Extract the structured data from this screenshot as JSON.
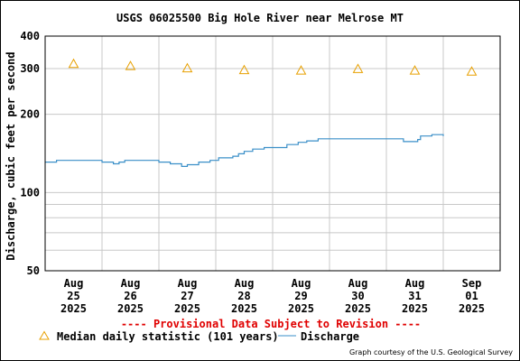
{
  "chart_data": {
    "type": "line",
    "title": "USGS 06025500 Big Hole River near Melrose MT",
    "ylabel": "Discharge, cubic feet per second",
    "y_scale": "log",
    "ylim": [
      50,
      400
    ],
    "y_ticks": [
      50,
      100,
      200,
      300,
      400
    ],
    "x_ticks": [
      {
        "day": 25,
        "lines": [
          "Aug",
          "25",
          "2025"
        ]
      },
      {
        "day": 26,
        "lines": [
          "Aug",
          "26",
          "2025"
        ]
      },
      {
        "day": 27,
        "lines": [
          "Aug",
          "27",
          "2025"
        ]
      },
      {
        "day": 28,
        "lines": [
          "Aug",
          "28",
          "2025"
        ]
      },
      {
        "day": 29,
        "lines": [
          "Aug",
          "29",
          "2025"
        ]
      },
      {
        "day": 30,
        "lines": [
          "Aug",
          "30",
          "2025"
        ]
      },
      {
        "day": 31,
        "lines": [
          "Aug",
          "31",
          "2025"
        ]
      },
      {
        "day": 32,
        "lines": [
          "Sep",
          "01",
          "2025"
        ]
      }
    ],
    "grid": true,
    "provisional_note": "---- Provisional Data Subject to Revision ----",
    "credit": "Graph courtesy of the U.S. Geological Survey",
    "series": [
      {
        "name": "Median daily statistic (101 years)",
        "kind": "marker-triangle",
        "color": "#e8a000",
        "x": [
          25,
          26,
          27,
          28,
          29,
          30,
          31,
          32
        ],
        "y": [
          313,
          307,
          301,
          296,
          295,
          299,
          295,
          292
        ]
      },
      {
        "name": "Discharge",
        "kind": "line",
        "color": "#3a8fc8",
        "x": [
          24.5,
          24.7,
          25.3,
          25.5,
          25.7,
          25.8,
          25.9,
          26.2,
          26.5,
          26.7,
          26.9,
          27.0,
          27.2,
          27.4,
          27.55,
          27.8,
          27.9,
          28.0,
          28.15,
          28.35,
          28.5,
          28.75,
          28.95,
          29.1,
          29.3,
          29.8,
          30.2,
          30.5,
          30.8,
          30.9,
          31.0,
          31.05,
          31.1,
          31.3,
          31.5
        ],
        "y": [
          131,
          133,
          133,
          131,
          129,
          131,
          133,
          133,
          131,
          129,
          126,
          128,
          131,
          133,
          136,
          138,
          141,
          144,
          147,
          149,
          149,
          153,
          156,
          158,
          161,
          161,
          161,
          161,
          157,
          157,
          157,
          160,
          165,
          167,
          165
        ]
      }
    ],
    "legend_placement": "bottom"
  }
}
